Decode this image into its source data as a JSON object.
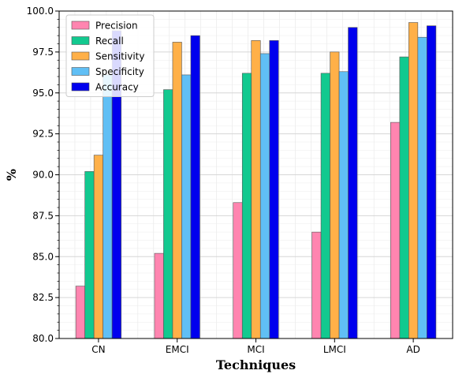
{
  "chart_data": {
    "type": "bar",
    "title": "",
    "xlabel": "Techniques",
    "ylabel": "%",
    "categories": [
      "CN",
      "EMCI",
      "MCI",
      "LMCI",
      "AD"
    ],
    "ylim": [
      80.0,
      100.0
    ],
    "yticks": [
      "80.0",
      "82.5",
      "85.0",
      "87.5",
      "90.0",
      "92.5",
      "95.0",
      "97.5",
      "100.0"
    ],
    "grid": true,
    "legend_position": "top-left",
    "series": [
      {
        "name": "Precision",
        "color": "#ff85b0",
        "values": [
          83.2,
          85.2,
          88.3,
          86.5,
          93.2
        ]
      },
      {
        "name": "Recall",
        "color": "#12c98f",
        "values": [
          90.2,
          95.2,
          96.2,
          96.2,
          97.2
        ]
      },
      {
        "name": "Sensitivity",
        "color": "#ffb048",
        "values": [
          91.2,
          98.1,
          98.2,
          97.5,
          99.3
        ]
      },
      {
        "name": "Specificity",
        "color": "#60bff5",
        "values": [
          96.1,
          96.1,
          97.4,
          96.3,
          98.4
        ]
      },
      {
        "name": "Accuracy",
        "color": "#0000ee",
        "values": [
          98.8,
          98.5,
          98.2,
          99.0,
          99.1
        ]
      }
    ]
  }
}
